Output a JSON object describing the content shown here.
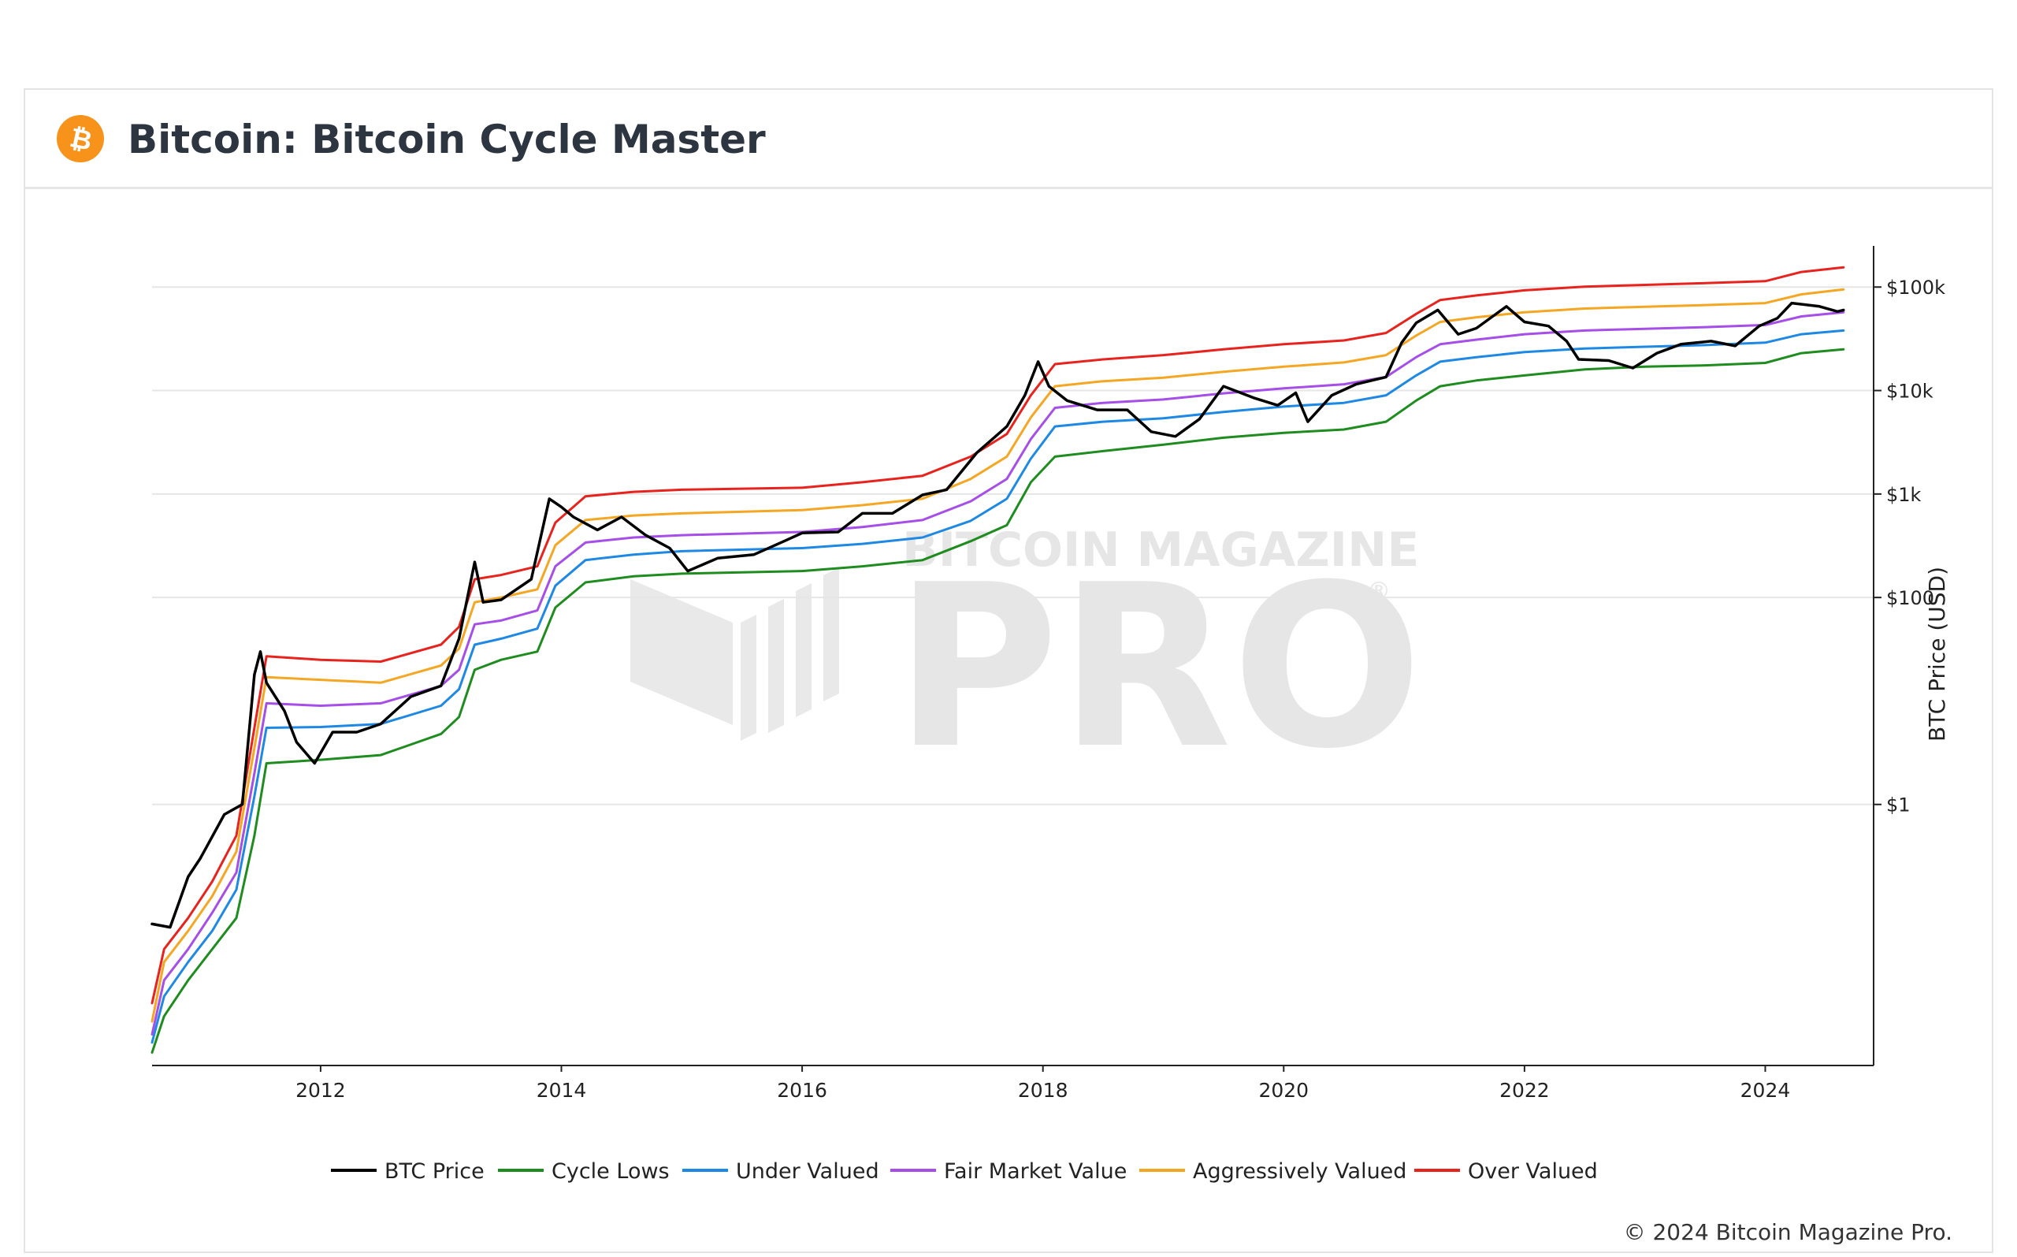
{
  "header": {
    "title": "Bitcoin: Bitcoin Cycle Master",
    "logo_icon": "bitcoin-logo-icon",
    "logo_color": "#F7931A"
  },
  "footer": {
    "copyright": "© 2024 Bitcoin Magazine Pro."
  },
  "watermark": {
    "line1": "BITCOIN MAGAZINE",
    "line2": "PRO",
    "mark": "®"
  },
  "chart_data": {
    "type": "line",
    "ylabel": "BTC Price (USD)",
    "yscale": "log",
    "ylim": [
      0.003,
      250000
    ],
    "xlim": [
      2010.6,
      2024.9
    ],
    "x_ticks": [
      2012,
      2014,
      2016,
      2018,
      2020,
      2022,
      2024
    ],
    "x_tick_labels": [
      "2012",
      "2014",
      "2016",
      "2018",
      "2020",
      "2022",
      "2024"
    ],
    "y_ticks": [
      1,
      100,
      1000,
      10000,
      100000
    ],
    "y_tick_labels": [
      "$1",
      "$100",
      "$1k",
      "$10k",
      "$100k"
    ],
    "grid": true,
    "legend_position": "bottom",
    "series": [
      {
        "name": "BTC Price",
        "color": "#000000",
        "points": [
          [
            2010.6,
            0.07
          ],
          [
            2010.75,
            0.065
          ],
          [
            2010.9,
            0.2
          ],
          [
            2011.0,
            0.3
          ],
          [
            2011.2,
            0.8
          ],
          [
            2011.35,
            1.0
          ],
          [
            2011.45,
            18
          ],
          [
            2011.5,
            30
          ],
          [
            2011.55,
            15
          ],
          [
            2011.7,
            8
          ],
          [
            2011.8,
            4
          ],
          [
            2011.95,
            2.5
          ],
          [
            2012.1,
            5
          ],
          [
            2012.3,
            5
          ],
          [
            2012.5,
            6
          ],
          [
            2012.75,
            11
          ],
          [
            2013.0,
            14
          ],
          [
            2013.15,
            40
          ],
          [
            2013.28,
            220
          ],
          [
            2013.35,
            90
          ],
          [
            2013.5,
            95
          ],
          [
            2013.75,
            150
          ],
          [
            2013.9,
            900
          ],
          [
            2014.0,
            750
          ],
          [
            2014.1,
            600
          ],
          [
            2014.3,
            450
          ],
          [
            2014.5,
            600
          ],
          [
            2014.7,
            400
          ],
          [
            2014.9,
            300
          ],
          [
            2015.05,
            180
          ],
          [
            2015.3,
            240
          ],
          [
            2015.6,
            260
          ],
          [
            2015.85,
            350
          ],
          [
            2016.0,
            420
          ],
          [
            2016.3,
            430
          ],
          [
            2016.5,
            650
          ],
          [
            2016.75,
            650
          ],
          [
            2017.0,
            980
          ],
          [
            2017.2,
            1100
          ],
          [
            2017.45,
            2500
          ],
          [
            2017.7,
            4500
          ],
          [
            2017.85,
            9000
          ],
          [
            2017.96,
            19000
          ],
          [
            2018.05,
            11000
          ],
          [
            2018.2,
            8000
          ],
          [
            2018.45,
            6500
          ],
          [
            2018.7,
            6500
          ],
          [
            2018.9,
            4000
          ],
          [
            2019.1,
            3600
          ],
          [
            2019.3,
            5300
          ],
          [
            2019.5,
            11000
          ],
          [
            2019.75,
            8500
          ],
          [
            2019.95,
            7200
          ],
          [
            2020.1,
            9500
          ],
          [
            2020.2,
            5000
          ],
          [
            2020.4,
            9000
          ],
          [
            2020.6,
            11500
          ],
          [
            2020.85,
            13500
          ],
          [
            2020.98,
            29000
          ],
          [
            2021.1,
            45000
          ],
          [
            2021.28,
            60000
          ],
          [
            2021.45,
            35000
          ],
          [
            2021.6,
            40000
          ],
          [
            2021.85,
            65000
          ],
          [
            2022.0,
            46000
          ],
          [
            2022.2,
            42000
          ],
          [
            2022.35,
            30000
          ],
          [
            2022.45,
            20000
          ],
          [
            2022.7,
            19500
          ],
          [
            2022.9,
            16500
          ],
          [
            2023.1,
            23000
          ],
          [
            2023.3,
            28000
          ],
          [
            2023.55,
            30000
          ],
          [
            2023.75,
            27000
          ],
          [
            2023.95,
            42000
          ],
          [
            2024.1,
            50000
          ],
          [
            2024.22,
            70000
          ],
          [
            2024.45,
            65000
          ],
          [
            2024.6,
            58000
          ],
          [
            2024.65,
            60000
          ]
        ]
      },
      {
        "name": "Cycle Lows",
        "color": "#1e8c1e",
        "points": [
          [
            2010.6,
            0.004
          ],
          [
            2010.7,
            0.009
          ],
          [
            2010.9,
            0.02
          ],
          [
            2011.1,
            0.04
          ],
          [
            2011.3,
            0.08
          ],
          [
            2011.45,
            0.5
          ],
          [
            2011.55,
            2.5
          ],
          [
            2012.0,
            2.7
          ],
          [
            2012.5,
            3
          ],
          [
            2013.0,
            4.8
          ],
          [
            2013.15,
            7
          ],
          [
            2013.28,
            20
          ],
          [
            2013.5,
            25
          ],
          [
            2013.8,
            30
          ],
          [
            2013.95,
            80
          ],
          [
            2014.2,
            140
          ],
          [
            2014.6,
            160
          ],
          [
            2015.0,
            170
          ],
          [
            2016.0,
            180
          ],
          [
            2016.5,
            200
          ],
          [
            2017.0,
            230
          ],
          [
            2017.4,
            350
          ],
          [
            2017.7,
            500
          ],
          [
            2017.9,
            1300
          ],
          [
            2018.1,
            2300
          ],
          [
            2018.5,
            2600
          ],
          [
            2019.0,
            3000
          ],
          [
            2019.5,
            3500
          ],
          [
            2020.0,
            3900
          ],
          [
            2020.5,
            4200
          ],
          [
            2020.85,
            5000
          ],
          [
            2021.1,
            8000
          ],
          [
            2021.3,
            11000
          ],
          [
            2021.6,
            12500
          ],
          [
            2022.0,
            14000
          ],
          [
            2022.5,
            16000
          ],
          [
            2023.0,
            17000
          ],
          [
            2023.5,
            17500
          ],
          [
            2024.0,
            18500
          ],
          [
            2024.3,
            23000
          ],
          [
            2024.65,
            25000
          ]
        ]
      },
      {
        "name": "Under Valued",
        "color": "#1e88e5",
        "points": [
          [
            2010.6,
            0.005
          ],
          [
            2010.7,
            0.014
          ],
          [
            2010.9,
            0.03
          ],
          [
            2011.1,
            0.06
          ],
          [
            2011.3,
            0.15
          ],
          [
            2011.45,
            1.2
          ],
          [
            2011.55,
            5.5
          ],
          [
            2012.0,
            5.6
          ],
          [
            2012.5,
            6
          ],
          [
            2013.0,
            9
          ],
          [
            2013.15,
            13
          ],
          [
            2013.28,
            35
          ],
          [
            2013.5,
            40
          ],
          [
            2013.8,
            50
          ],
          [
            2013.95,
            130
          ],
          [
            2014.2,
            230
          ],
          [
            2014.6,
            260
          ],
          [
            2015.0,
            280
          ],
          [
            2016.0,
            300
          ],
          [
            2016.5,
            330
          ],
          [
            2017.0,
            380
          ],
          [
            2017.4,
            550
          ],
          [
            2017.7,
            900
          ],
          [
            2017.9,
            2200
          ],
          [
            2018.1,
            4500
          ],
          [
            2018.5,
            5000
          ],
          [
            2019.0,
            5400
          ],
          [
            2019.5,
            6200
          ],
          [
            2020.0,
            7000
          ],
          [
            2020.5,
            7600
          ],
          [
            2020.85,
            9000
          ],
          [
            2021.1,
            14000
          ],
          [
            2021.3,
            19000
          ],
          [
            2021.6,
            21000
          ],
          [
            2022.0,
            23500
          ],
          [
            2022.5,
            25500
          ],
          [
            2023.0,
            26500
          ],
          [
            2023.5,
            27500
          ],
          [
            2024.0,
            29000
          ],
          [
            2024.3,
            35000
          ],
          [
            2024.65,
            38000
          ]
        ]
      },
      {
        "name": "Fair Market Value",
        "color": "#a64ee8",
        "points": [
          [
            2010.6,
            0.006
          ],
          [
            2010.7,
            0.02
          ],
          [
            2010.9,
            0.04
          ],
          [
            2011.1,
            0.09
          ],
          [
            2011.3,
            0.22
          ],
          [
            2011.45,
            2
          ],
          [
            2011.55,
            9.5
          ],
          [
            2012.0,
            9
          ],
          [
            2012.5,
            9.5
          ],
          [
            2013.0,
            14
          ],
          [
            2013.15,
            20
          ],
          [
            2013.28,
            55
          ],
          [
            2013.5,
            60
          ],
          [
            2013.8,
            75
          ],
          [
            2013.95,
            200
          ],
          [
            2014.2,
            340
          ],
          [
            2014.6,
            380
          ],
          [
            2015.0,
            400
          ],
          [
            2016.0,
            430
          ],
          [
            2016.5,
            480
          ],
          [
            2017.0,
            560
          ],
          [
            2017.4,
            850
          ],
          [
            2017.7,
            1400
          ],
          [
            2017.9,
            3400
          ],
          [
            2018.1,
            6800
          ],
          [
            2018.5,
            7600
          ],
          [
            2019.0,
            8200
          ],
          [
            2019.5,
            9400
          ],
          [
            2020.0,
            10500
          ],
          [
            2020.5,
            11500
          ],
          [
            2020.85,
            13500
          ],
          [
            2021.1,
            21000
          ],
          [
            2021.3,
            28000
          ],
          [
            2021.6,
            31000
          ],
          [
            2022.0,
            35000
          ],
          [
            2022.5,
            38000
          ],
          [
            2023.0,
            39500
          ],
          [
            2023.5,
            41000
          ],
          [
            2024.0,
            43000
          ],
          [
            2024.3,
            52000
          ],
          [
            2024.65,
            57000
          ]
        ]
      },
      {
        "name": "Aggressively Valued",
        "color": "#f5a623",
        "points": [
          [
            2010.6,
            0.008
          ],
          [
            2010.7,
            0.03
          ],
          [
            2010.9,
            0.06
          ],
          [
            2011.1,
            0.13
          ],
          [
            2011.3,
            0.35
          ],
          [
            2011.45,
            3.5
          ],
          [
            2011.55,
            17
          ],
          [
            2012.0,
            16
          ],
          [
            2012.5,
            15
          ],
          [
            2013.0,
            22
          ],
          [
            2013.15,
            32
          ],
          [
            2013.28,
            90
          ],
          [
            2013.5,
            100
          ],
          [
            2013.8,
            120
          ],
          [
            2013.95,
            320
          ],
          [
            2014.2,
            560
          ],
          [
            2014.6,
            620
          ],
          [
            2015.0,
            650
          ],
          [
            2016.0,
            700
          ],
          [
            2016.5,
            780
          ],
          [
            2017.0,
            900
          ],
          [
            2017.4,
            1400
          ],
          [
            2017.7,
            2300
          ],
          [
            2017.9,
            5500
          ],
          [
            2018.1,
            11000
          ],
          [
            2018.5,
            12300
          ],
          [
            2019.0,
            13300
          ],
          [
            2019.5,
            15200
          ],
          [
            2020.0,
            17000
          ],
          [
            2020.5,
            18700
          ],
          [
            2020.85,
            22000
          ],
          [
            2021.1,
            34000
          ],
          [
            2021.3,
            46000
          ],
          [
            2021.6,
            51000
          ],
          [
            2022.0,
            57000
          ],
          [
            2022.5,
            62000
          ],
          [
            2023.0,
            64500
          ],
          [
            2023.5,
            67000
          ],
          [
            2024.0,
            70000
          ],
          [
            2024.3,
            85000
          ],
          [
            2024.65,
            95000
          ]
        ]
      },
      {
        "name": "Over Valued",
        "color": "#e8231e",
        "points": [
          [
            2010.6,
            0.012
          ],
          [
            2010.7,
            0.04
          ],
          [
            2010.9,
            0.08
          ],
          [
            2011.1,
            0.18
          ],
          [
            2011.3,
            0.5
          ],
          [
            2011.45,
            5.5
          ],
          [
            2011.55,
            27
          ],
          [
            2012.0,
            25
          ],
          [
            2012.5,
            24
          ],
          [
            2013.0,
            35
          ],
          [
            2013.15,
            52
          ],
          [
            2013.28,
            150
          ],
          [
            2013.5,
            165
          ],
          [
            2013.8,
            200
          ],
          [
            2013.95,
            530
          ],
          [
            2014.2,
            950
          ],
          [
            2014.6,
            1050
          ],
          [
            2015.0,
            1100
          ],
          [
            2016.0,
            1150
          ],
          [
            2016.5,
            1300
          ],
          [
            2017.0,
            1500
          ],
          [
            2017.4,
            2300
          ],
          [
            2017.7,
            3800
          ],
          [
            2017.9,
            9000
          ],
          [
            2018.1,
            18000
          ],
          [
            2018.5,
            20000
          ],
          [
            2019.0,
            22000
          ],
          [
            2019.5,
            25000
          ],
          [
            2020.0,
            28000
          ],
          [
            2020.5,
            30500
          ],
          [
            2020.85,
            36000
          ],
          [
            2021.1,
            55000
          ],
          [
            2021.3,
            75000
          ],
          [
            2021.6,
            83000
          ],
          [
            2022.0,
            93000
          ],
          [
            2022.5,
            101000
          ],
          [
            2023.0,
            105000
          ],
          [
            2023.5,
            109000
          ],
          [
            2024.0,
            114000
          ],
          [
            2024.3,
            140000
          ],
          [
            2024.65,
            155000
          ]
        ]
      }
    ]
  }
}
